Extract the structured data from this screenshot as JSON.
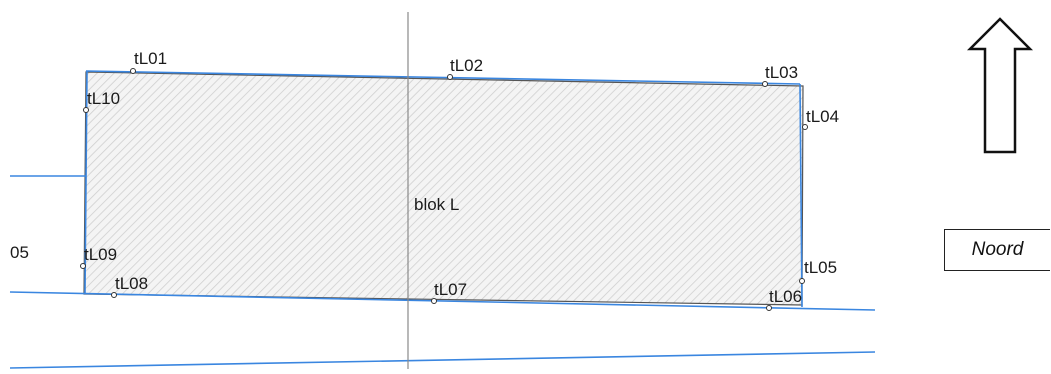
{
  "diagram": {
    "block_label": "blok L",
    "edge_label": "05",
    "points": [
      {
        "id": "tL01"
      },
      {
        "id": "tL02"
      },
      {
        "id": "tL03"
      },
      {
        "id": "tL04"
      },
      {
        "id": "tL05"
      },
      {
        "id": "tL06"
      },
      {
        "id": "tL07"
      },
      {
        "id": "tL08"
      },
      {
        "id": "tL09"
      },
      {
        "id": "tL10"
      }
    ],
    "colors": {
      "parcel_line": "#3a86e0",
      "outline": "#444444",
      "hatch": "#c8c8c8",
      "axis": "#888888"
    }
  },
  "north": {
    "label": "Noord",
    "arrow_icon": "north-arrow-icon"
  }
}
